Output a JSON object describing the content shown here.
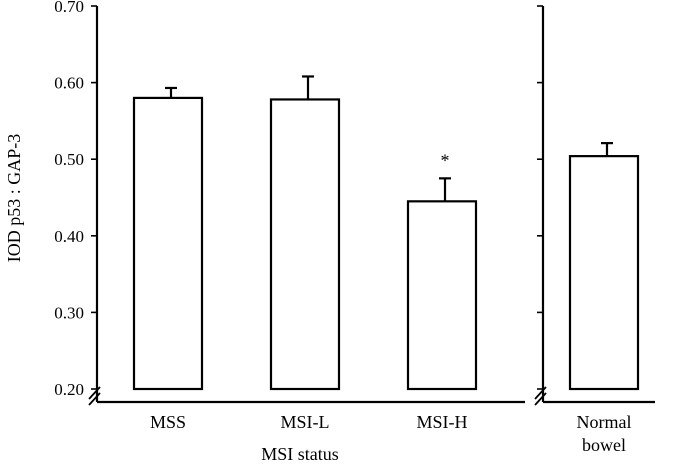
{
  "chart_data": {
    "type": "bar",
    "ylabel": "IOD p53 : GAP-3",
    "xlabel": "MSI status",
    "ylim": [
      0.2,
      0.7
    ],
    "yticks": [
      0.2,
      0.3,
      0.4,
      0.5,
      0.6,
      0.7
    ],
    "ytick_labels": [
      "0.20",
      "0.30",
      "0.40",
      "0.50",
      "0.60",
      "0.70"
    ],
    "axis_break": true,
    "grid": false,
    "panels": [
      {
        "categories": [
          "MSS",
          "MSI-L",
          "MSI-H"
        ],
        "values": [
          0.58,
          0.578,
          0.445
        ],
        "errors": [
          0.013,
          0.03,
          0.03
        ],
        "annotations": [
          "",
          "",
          "*"
        ]
      },
      {
        "categories": [
          "Normal\nbowel"
        ],
        "category_lines": [
          [
            "Normal",
            "bowel"
          ]
        ],
        "values": [
          0.504
        ],
        "errors": [
          0.017
        ],
        "annotations": [
          ""
        ]
      }
    ]
  }
}
